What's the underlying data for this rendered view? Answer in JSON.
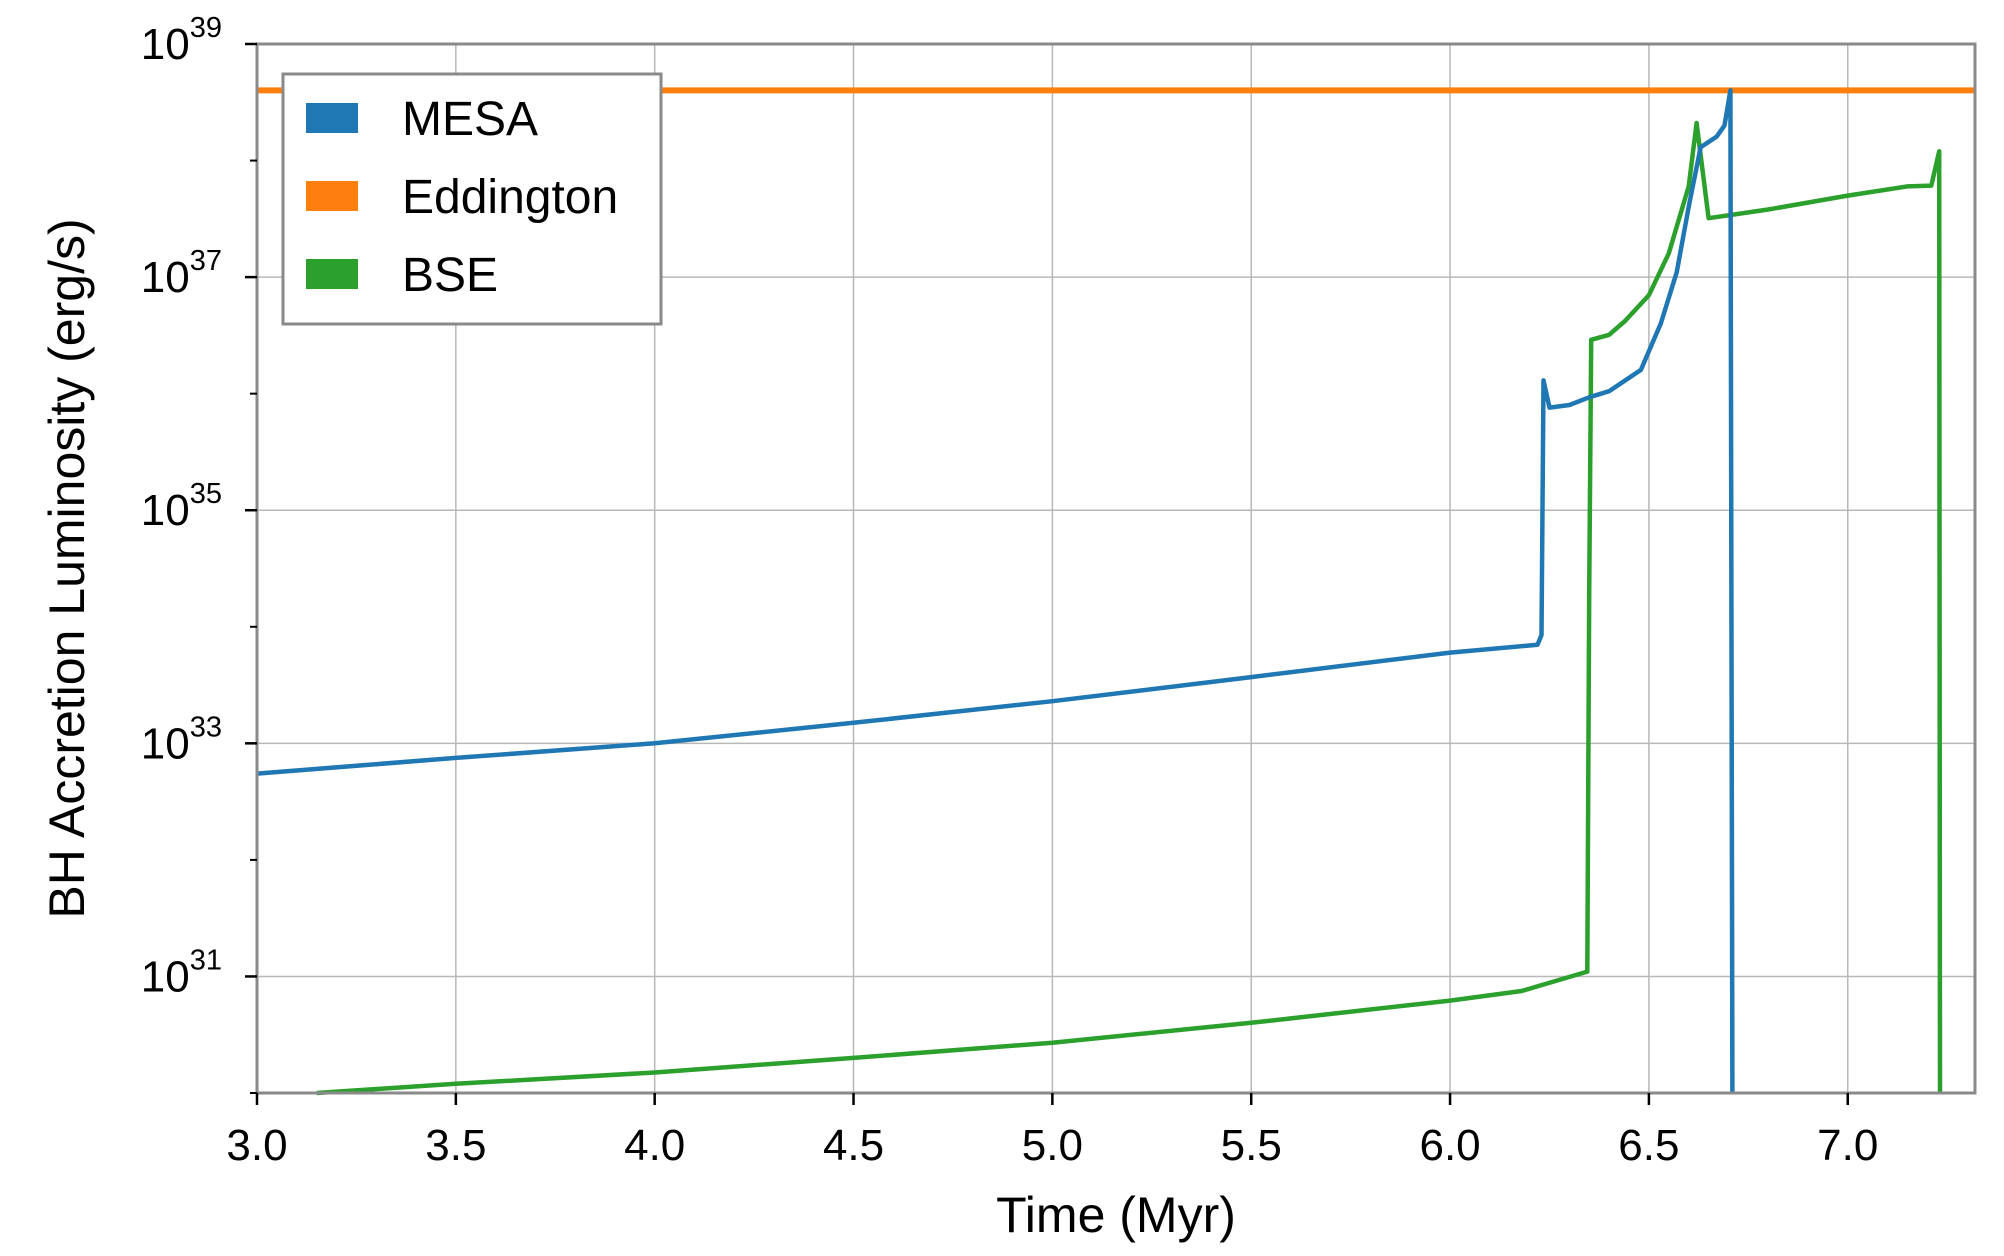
{
  "chart_data": {
    "type": "line",
    "xlabel": "Time (Myr)",
    "ylabel": "BH Accretion Luminosity  (erg/s)",
    "xlim": [
      3.0,
      7.32
    ],
    "ylim": [
      1e+30,
      1e+39
    ],
    "y_scale": "log",
    "x_ticks": [
      "3.0",
      "3.5",
      "4.0",
      "4.5",
      "5.0",
      "5.5",
      "6.0",
      "6.5",
      "7.0"
    ],
    "y_ticks": [
      {
        "base": "10",
        "exp": "31",
        "value": 1e+31
      },
      {
        "base": "10",
        "exp": "33",
        "value": 1e+33
      },
      {
        "base": "10",
        "exp": "35",
        "value": 1e+35
      },
      {
        "base": "10",
        "exp": "37",
        "value": 1e+37
      },
      {
        "base": "10",
        "exp": "39",
        "value": 1e+39
      }
    ],
    "grid": true,
    "legend_position": "upper-left",
    "series": [
      {
        "name": "MESA",
        "color": "#1f77b4",
        "points": [
          [
            3.0,
            5.5e+32
          ],
          [
            3.5,
            7.5e+32
          ],
          [
            4.0,
            1e+33
          ],
          [
            4.5,
            1.5e+33
          ],
          [
            5.0,
            2.3e+33
          ],
          [
            5.5,
            3.7e+33
          ],
          [
            6.0,
            6e+33
          ],
          [
            6.22,
            7e+33
          ],
          [
            6.23,
            8.5e+33
          ],
          [
            6.235,
            1.3e+36
          ],
          [
            6.25,
            7.6e+35
          ],
          [
            6.3,
            8e+35
          ],
          [
            6.35,
            9.3e+35
          ],
          [
            6.4,
            1.05e+36
          ],
          [
            6.48,
            1.6e+36
          ],
          [
            6.53,
            4e+36
          ],
          [
            6.57,
            1.1e+37
          ],
          [
            6.6,
            4e+37
          ],
          [
            6.63,
            1.3e+38
          ],
          [
            6.67,
            1.6e+38
          ],
          [
            6.69,
            2e+38
          ],
          [
            6.705,
            4e+38
          ],
          [
            6.71,
            1e+30
          ]
        ]
      },
      {
        "name": "Eddington",
        "color": "#ff7f0e",
        "points": [
          [
            3.0,
            4e+38
          ],
          [
            7.32,
            4e+38
          ]
        ]
      },
      {
        "name": "BSE",
        "color": "#2ca02c",
        "points": [
          [
            3.15,
            1e+30
          ],
          [
            3.5,
            1.2e+30
          ],
          [
            4.0,
            1.5e+30
          ],
          [
            4.5,
            2e+30
          ],
          [
            5.0,
            2.7e+30
          ],
          [
            5.5,
            4e+30
          ],
          [
            6.0,
            6.2e+30
          ],
          [
            6.18,
            7.5e+30
          ],
          [
            6.345,
            1.1e+31
          ],
          [
            6.35,
            2e+34
          ],
          [
            6.355,
            2.9e+36
          ],
          [
            6.4,
            3.2e+36
          ],
          [
            6.44,
            4.2e+36
          ],
          [
            6.5,
            7e+36
          ],
          [
            6.55,
            1.6e+37
          ],
          [
            6.6,
            6e+37
          ],
          [
            6.62,
            2.1e+38
          ],
          [
            6.65,
            3.2e+37
          ],
          [
            6.8,
            3.8e+37
          ],
          [
            7.0,
            5e+37
          ],
          [
            7.15,
            6e+37
          ],
          [
            7.21,
            6.1e+37
          ],
          [
            7.23,
            1.2e+38
          ],
          [
            7.232,
            1e+30
          ]
        ]
      }
    ]
  }
}
